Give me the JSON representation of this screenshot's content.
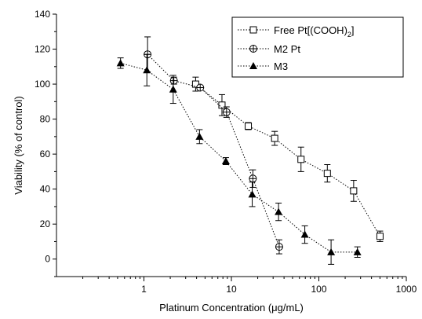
{
  "chart_data": {
    "type": "scatter",
    "title": "",
    "xlabel": "Platinum Concentration (μg/mL)",
    "ylabel": "Viability (% of control)",
    "xscale": "log",
    "xlim": [
      0.1,
      1000
    ],
    "ylim": [
      -10,
      140
    ],
    "xticks": [
      "1",
      "10",
      "100",
      "1000"
    ],
    "yticks": [
      "0",
      "20",
      "40",
      "60",
      "80",
      "100",
      "120",
      "140"
    ],
    "grid": false,
    "legend_position": "top-right",
    "series": [
      {
        "name": "Free Pt[(COOH)2]",
        "marker": "open-square",
        "line": "dotted",
        "color": "#000000",
        "x": [
          3.9,
          7.8,
          15.6,
          31.25,
          62.5,
          125,
          250,
          500
        ],
        "y": [
          100,
          88,
          76,
          69,
          57,
          49,
          39,
          13
        ],
        "err": [
          4,
          6,
          2,
          4,
          7,
          5,
          6,
          3
        ]
      },
      {
        "name": "M2 Pt",
        "marker": "circle-plus",
        "line": "dotted",
        "color": "#000000",
        "x": [
          1.1,
          2.2,
          4.4,
          8.8,
          17.6,
          35.2
        ],
        "y": [
          117,
          102,
          98,
          84,
          46,
          7
        ],
        "err": [
          10,
          2,
          1,
          3,
          5,
          4
        ]
      },
      {
        "name": "M3",
        "marker": "filled-triangle",
        "line": "dotted",
        "color": "#000000",
        "x": [
          0.54,
          1.08,
          2.16,
          4.32,
          8.64,
          17.3,
          34.6,
          69.1,
          138,
          276
        ],
        "y": [
          112,
          108,
          97,
          70,
          56,
          37,
          27,
          14,
          4,
          4
        ],
        "err": [
          3,
          9,
          8,
          4,
          2,
          7,
          5,
          5,
          7,
          3
        ]
      }
    ],
    "legend": {
      "free_pt_prefix": "Free Pt[(COOH)",
      "free_pt_sub": "2",
      "free_pt_suffix": "]",
      "m2": "M2 Pt",
      "m3": "M3"
    }
  }
}
